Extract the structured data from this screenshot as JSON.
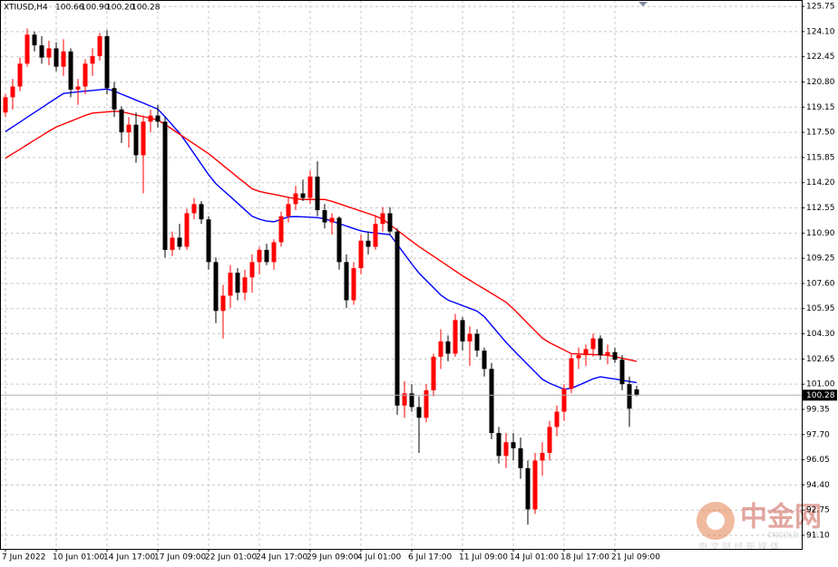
{
  "chart_data": {
    "type": "candlestick",
    "symbol": "XTIUSD,H4",
    "header_quote": [
      "100.66",
      "100.90",
      "100.20",
      "100.28"
    ],
    "up_color": "#ff0000",
    "down_color": "#000000",
    "ohlc": [
      [
        118.8,
        120.0,
        118.5,
        119.8
      ],
      [
        119.8,
        121.0,
        119.0,
        120.5
      ],
      [
        120.5,
        122.4,
        120.2,
        122.0
      ],
      [
        122.0,
        124.3,
        121.8,
        123.9
      ],
      [
        123.9,
        124.1,
        122.8,
        123.2
      ],
      [
        123.2,
        123.8,
        122.0,
        122.4
      ],
      [
        122.4,
        123.5,
        121.9,
        123.0
      ],
      [
        123.0,
        123.4,
        121.5,
        121.8
      ],
      [
        121.8,
        123.6,
        121.2,
        122.8
      ],
      [
        122.8,
        123.0,
        119.8,
        120.3
      ],
      [
        120.3,
        121.0,
        119.3,
        120.5
      ],
      [
        120.5,
        122.3,
        120.0,
        122.0
      ],
      [
        122.0,
        123.0,
        121.2,
        122.5
      ],
      [
        122.5,
        124.0,
        122.2,
        123.8
      ],
      [
        123.8,
        124.2,
        120.0,
        120.4
      ],
      [
        120.4,
        120.8,
        118.5,
        119.0
      ],
      [
        119.0,
        119.2,
        116.8,
        117.5
      ],
      [
        117.5,
        118.5,
        116.5,
        118.0
      ],
      [
        118.0,
        118.8,
        115.5,
        116.0
      ],
      [
        116.0,
        118.6,
        113.5,
        118.2
      ],
      [
        118.2,
        119.0,
        117.5,
        118.6
      ],
      [
        118.6,
        119.3,
        117.8,
        118.2
      ],
      [
        118.2,
        118.5,
        109.3,
        109.8
      ],
      [
        109.8,
        111.0,
        109.4,
        110.6
      ],
      [
        110.6,
        111.5,
        109.8,
        110.0
      ],
      [
        110.0,
        112.5,
        109.8,
        112.2
      ],
      [
        112.2,
        113.2,
        111.8,
        112.8
      ],
      [
        112.8,
        113.0,
        111.5,
        111.8
      ],
      [
        111.8,
        112.0,
        108.5,
        109.0
      ],
      [
        109.0,
        109.3,
        105.0,
        105.8
      ],
      [
        105.8,
        107.5,
        104.0,
        106.8
      ],
      [
        106.8,
        108.8,
        106.0,
        108.3
      ],
      [
        108.3,
        108.6,
        106.5,
        107.0
      ],
      [
        107.0,
        108.5,
        106.5,
        108.0
      ],
      [
        108.0,
        109.5,
        107.0,
        109.0
      ],
      [
        109.0,
        110.0,
        108.2,
        109.8
      ],
      [
        109.8,
        110.2,
        108.8,
        109.0
      ],
      [
        109.0,
        110.5,
        108.5,
        110.3
      ],
      [
        110.3,
        112.3,
        110.0,
        112.0
      ],
      [
        112.0,
        113.2,
        111.6,
        112.8
      ],
      [
        112.8,
        114.0,
        112.4,
        113.5
      ],
      [
        113.5,
        114.4,
        113.0,
        113.2
      ],
      [
        113.2,
        115.0,
        112.8,
        114.6
      ],
      [
        114.6,
        115.6,
        112.0,
        112.4
      ],
      [
        112.4,
        112.8,
        111.2,
        111.6
      ],
      [
        111.6,
        112.2,
        110.8,
        111.9
      ],
      [
        111.9,
        112.0,
        108.5,
        109.0
      ],
      [
        109.0,
        109.5,
        106.0,
        106.5
      ],
      [
        106.5,
        109.0,
        106.2,
        108.6
      ],
      [
        108.6,
        110.8,
        108.2,
        110.4
      ],
      [
        110.4,
        111.0,
        109.5,
        110.0
      ],
      [
        110.0,
        112.0,
        109.8,
        111.5
      ],
      [
        111.5,
        112.6,
        111.0,
        112.2
      ],
      [
        112.2,
        112.6,
        110.8,
        111.0
      ],
      [
        111.0,
        111.2,
        99.0,
        99.6
      ],
      [
        99.6,
        101.2,
        98.8,
        100.4
      ],
      [
        100.4,
        101.0,
        99.2,
        99.5
      ],
      [
        99.5,
        100.2,
        96.5,
        98.8
      ],
      [
        98.8,
        101.0,
        98.5,
        100.6
      ],
      [
        100.6,
        103.0,
        100.2,
        102.8
      ],
      [
        102.8,
        104.6,
        102.0,
        103.8
      ],
      [
        103.8,
        104.2,
        102.5,
        103.0
      ],
      [
        103.0,
        105.6,
        102.8,
        105.2
      ],
      [
        105.2,
        105.4,
        103.2,
        103.8
      ],
      [
        103.8,
        104.8,
        102.2,
        104.3
      ],
      [
        104.3,
        104.6,
        102.8,
        103.2
      ],
      [
        103.2,
        103.4,
        101.5,
        102.0
      ],
      [
        102.0,
        102.4,
        97.4,
        97.8
      ],
      [
        97.8,
        98.2,
        95.8,
        96.3
      ],
      [
        96.3,
        97.8,
        95.5,
        97.2
      ],
      [
        97.2,
        97.8,
        96.0,
        96.8
      ],
      [
        96.8,
        97.5,
        94.8,
        95.5
      ],
      [
        95.5,
        96.0,
        91.8,
        92.8
      ],
      [
        92.8,
        96.5,
        92.5,
        96.0
      ],
      [
        96.0,
        97.2,
        95.0,
        96.5
      ],
      [
        96.5,
        98.6,
        96.0,
        98.2
      ],
      [
        98.2,
        99.6,
        97.6,
        99.2
      ],
      [
        99.2,
        101.0,
        98.6,
        100.7
      ],
      [
        100.7,
        103.0,
        100.4,
        102.7
      ],
      [
        102.7,
        103.4,
        102.0,
        102.9
      ],
      [
        102.9,
        103.6,
        102.2,
        103.3
      ],
      [
        103.3,
        104.3,
        102.8,
        104.0
      ],
      [
        104.0,
        104.2,
        102.6,
        102.9
      ],
      [
        102.9,
        103.6,
        102.3,
        103.1
      ],
      [
        103.1,
        103.4,
        102.4,
        102.6
      ],
      [
        102.6,
        102.9,
        100.6,
        101.0
      ],
      [
        101.0,
        101.5,
        98.2,
        99.4
      ],
      [
        100.66,
        100.9,
        100.2,
        100.28
      ]
    ],
    "moving_averages": [
      {
        "color": "#0000ff",
        "values": [
          117.55,
          117.86,
          118.17,
          118.49,
          118.8,
          119.11,
          119.43,
          119.74,
          120.05,
          120.1,
          120.15,
          120.2,
          120.24,
          120.29,
          120.34,
          120.2,
          120.0,
          119.81,
          119.61,
          119.42,
          119.22,
          119.02,
          118.52,
          117.98,
          117.44,
          116.79,
          116.1,
          115.41,
          114.73,
          114.14,
          113.71,
          113.29,
          112.86,
          112.43,
          112.0,
          111.81,
          111.69,
          111.64,
          111.8,
          111.96,
          111.98,
          111.96,
          111.94,
          111.91,
          111.84,
          111.68,
          111.52,
          111.36,
          111.2,
          111.04,
          110.96,
          110.91,
          110.85,
          110.8,
          110.16,
          109.52,
          108.88,
          108.28,
          107.8,
          107.32,
          106.84,
          106.51,
          106.33,
          106.15,
          105.97,
          105.79,
          105.42,
          104.86,
          104.3,
          103.74,
          103.24,
          102.76,
          102.28,
          101.8,
          101.32,
          101.06,
          100.86,
          100.67,
          100.73,
          100.93,
          101.14,
          101.35,
          101.49,
          101.41,
          101.34,
          101.26,
          101.18,
          101.1
        ]
      },
      {
        "color": "#ff0000",
        "values": [
          115.8,
          116.1,
          116.39,
          116.69,
          116.99,
          117.28,
          117.58,
          117.85,
          118.04,
          118.23,
          118.42,
          118.61,
          118.76,
          118.8,
          118.84,
          118.88,
          118.85,
          118.74,
          118.63,
          118.53,
          118.42,
          118.31,
          118.02,
          117.7,
          117.38,
          117.06,
          116.74,
          116.42,
          116.1,
          115.72,
          115.33,
          114.95,
          114.56,
          114.18,
          113.8,
          113.63,
          113.53,
          113.44,
          113.34,
          113.24,
          113.15,
          113.1,
          113.1,
          113.1,
          113.1,
          112.98,
          112.82,
          112.66,
          112.5,
          112.34,
          112.18,
          112.02,
          111.81,
          111.45,
          111.09,
          110.73,
          110.37,
          110.02,
          109.7,
          109.38,
          109.06,
          108.74,
          108.42,
          108.1,
          107.81,
          107.52,
          107.24,
          106.95,
          106.66,
          106.37,
          105.94,
          105.46,
          104.98,
          104.5,
          104.02,
          103.72,
          103.48,
          103.24,
          103.0,
          102.98,
          102.96,
          102.94,
          102.92,
          102.9,
          102.8,
          102.7,
          102.6,
          102.5
        ]
      }
    ],
    "last_price": 100.28,
    "xlim": [
      -0.75,
      109.75
    ],
    "xticks": [
      {
        "value": 0,
        "label": "7 Jun 2022"
      },
      {
        "value": 7,
        "label": "10 Jun 01:00"
      },
      {
        "value": 14,
        "label": "14 Jun 17:00"
      },
      {
        "value": 21,
        "label": "17 Jun 09:00"
      },
      {
        "value": 28,
        "label": "22 Jun 01:00"
      },
      {
        "value": 35,
        "label": "24 Jun 17:00"
      },
      {
        "value": 42,
        "label": "29 Jun 09:00"
      },
      {
        "value": 49,
        "label": "4 Jul 01:00"
      },
      {
        "value": 56,
        "label": "6 Jul 17:00"
      },
      {
        "value": 63,
        "label": "11 Jul 09:00"
      },
      {
        "value": 70,
        "label": "14 Jul 01:00"
      },
      {
        "value": 77,
        "label": "18 Jul 17:00"
      },
      {
        "value": 84,
        "label": "21 Jul 09:00"
      }
    ],
    "ylim": [
      90.21,
      126.17
    ],
    "yticks": [
      125.75,
      {
        "value": 124.1,
        "label": "124.10"
      },
      122.45,
      {
        "value": 120.8,
        "label": "120.80"
      },
      119.15,
      {
        "value": 117.5,
        "label": "117.50"
      },
      115.85,
      {
        "value": 114.2,
        "label": "114.20"
      },
      112.55,
      {
        "value": 110.9,
        "label": "110.90"
      },
      109.25,
      {
        "value": 107.6,
        "label": "107.60"
      },
      105.95,
      {
        "value": 104.3,
        "label": "104.30"
      },
      102.65,
      {
        "value": 101,
        "label": "101.00"
      },
      99.35,
      {
        "value": 97.7,
        "label": "97.70"
      },
      96.05,
      {
        "value": 94.4,
        "label": "94.40"
      },
      92.75,
      {
        "value": 91.1,
        "label": "91.10"
      }
    ],
    "grid": true,
    "watermark": {
      "title": "中金网",
      "site": "CNGOLD.COM",
      "slogan": "中 文 财 经 新 媒 体"
    }
  }
}
